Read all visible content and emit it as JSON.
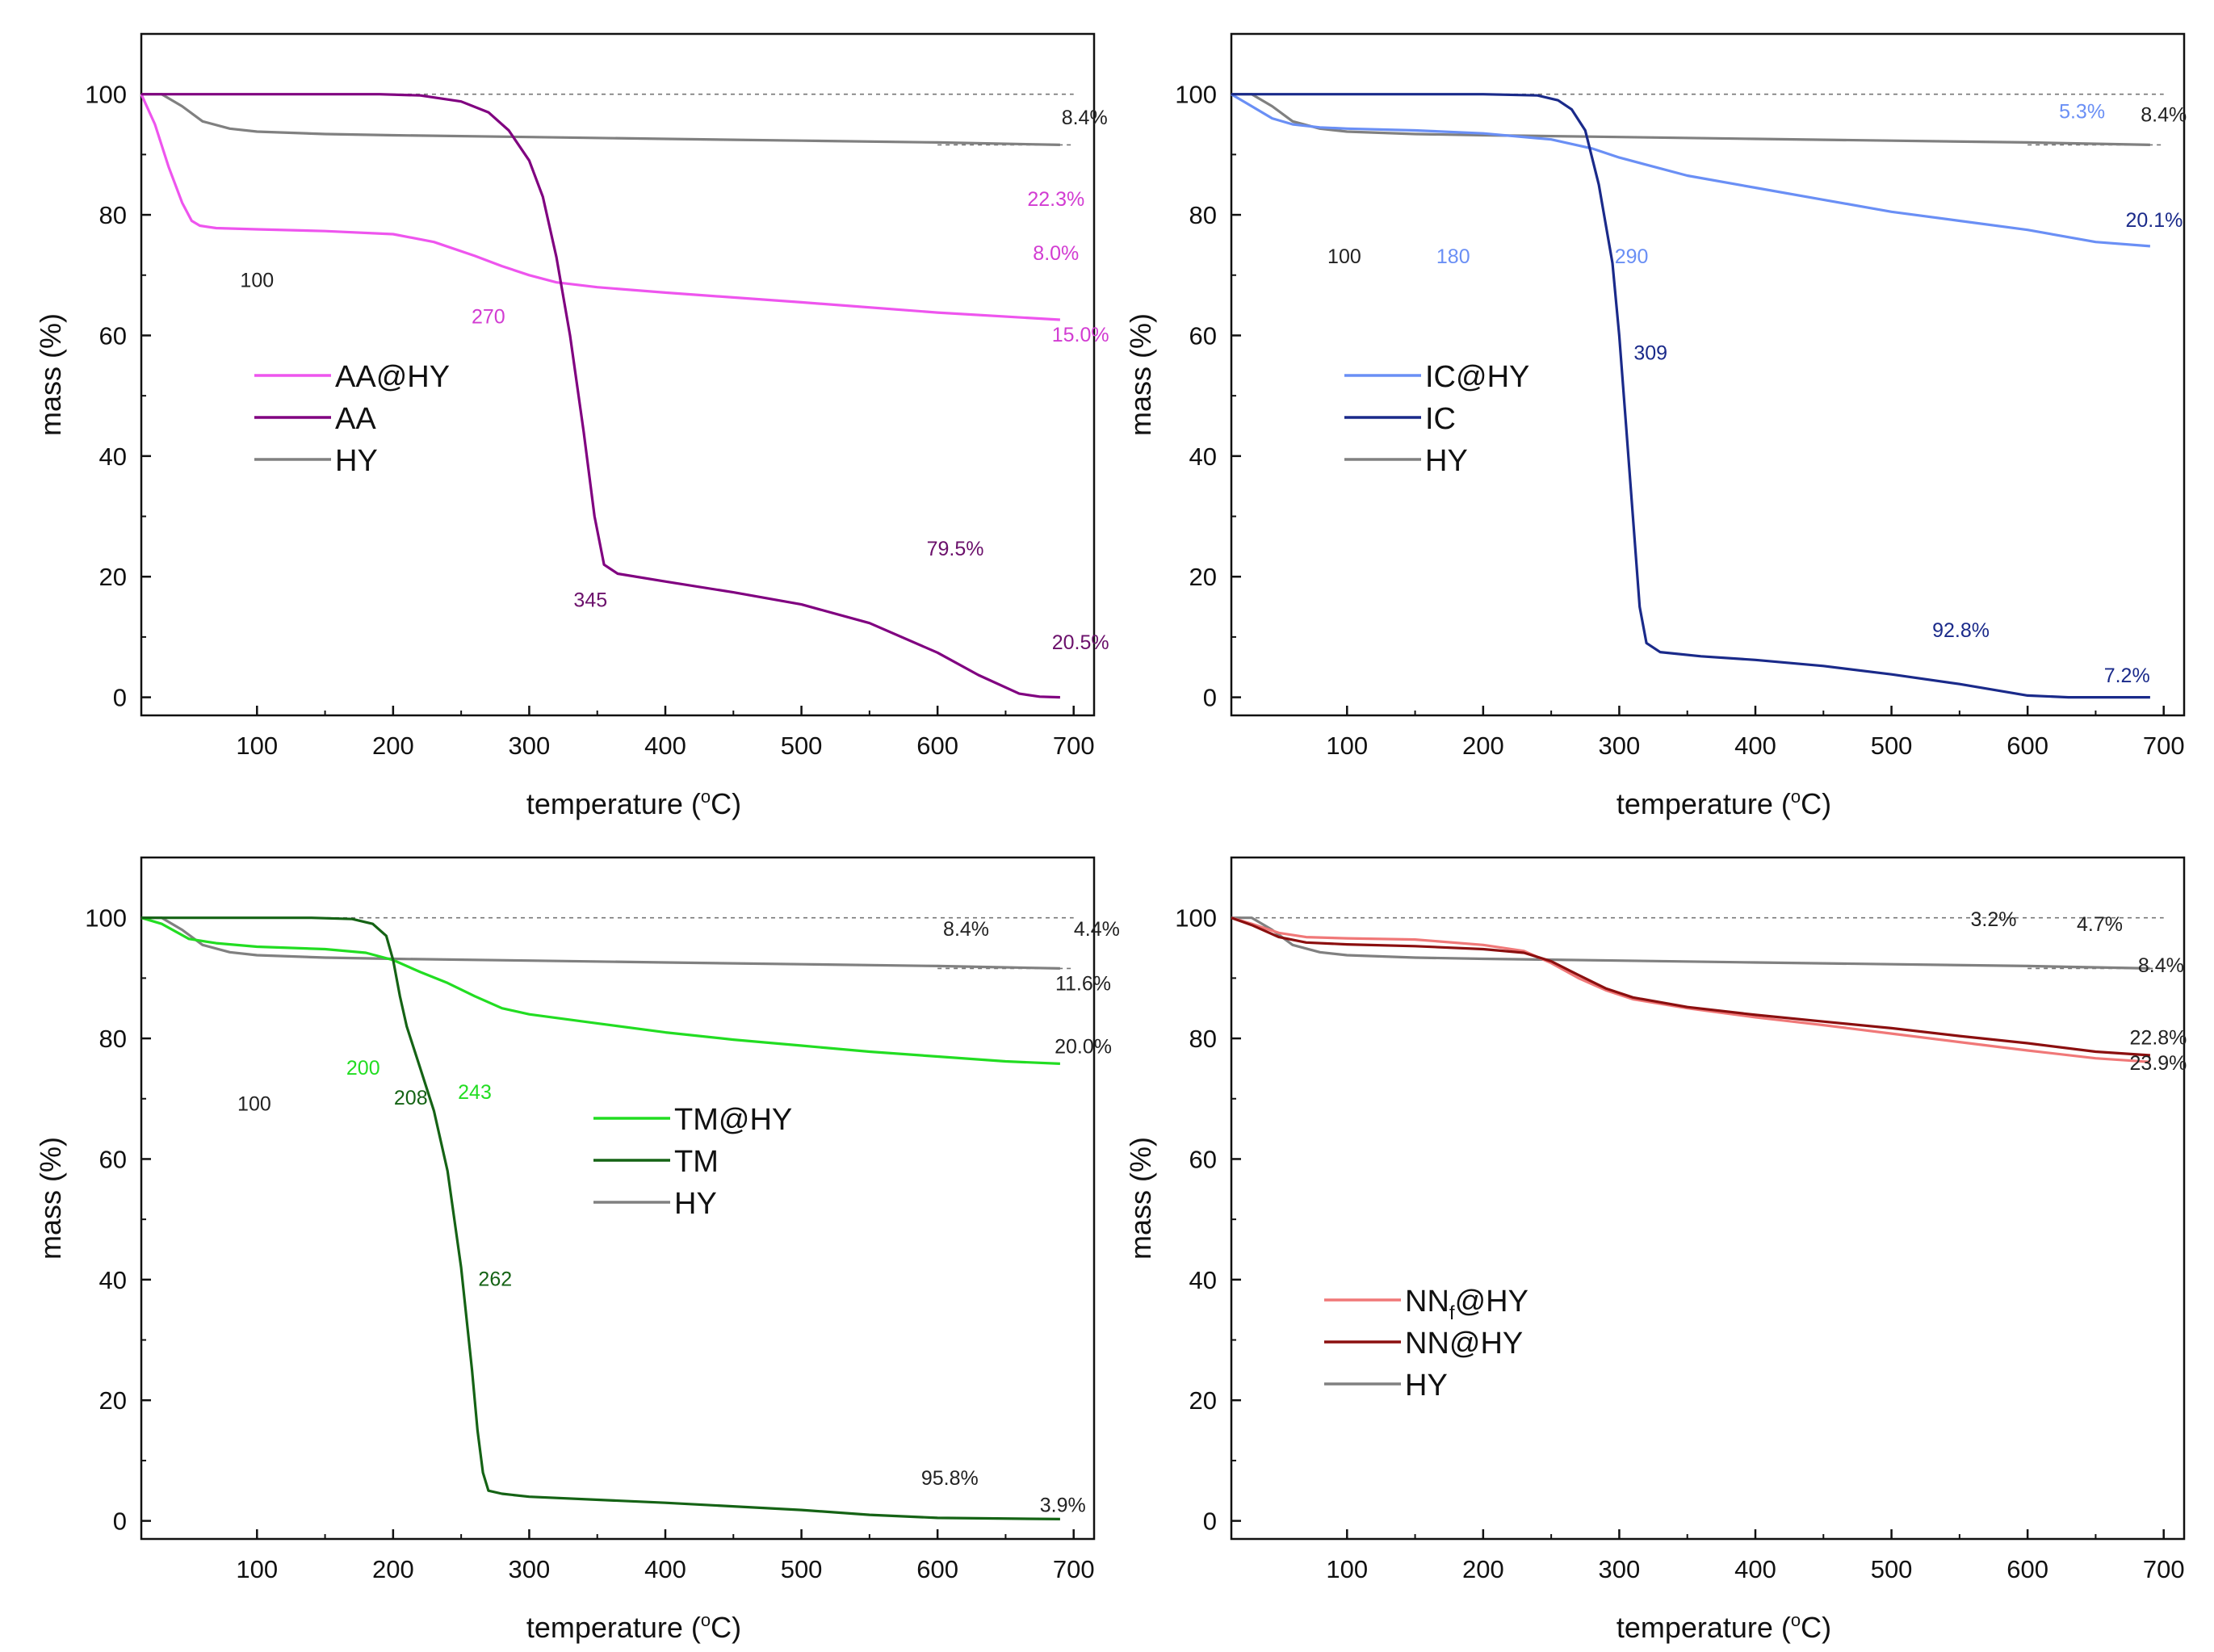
{
  "chart_data": [
    {
      "id": "aa",
      "type": "line",
      "xlabel": "temperature (",
      "xlabel_sup": "o",
      "xlabel_end": "C)",
      "ylabel": "mass (%)",
      "xlim": [
        15,
        715
      ],
      "ylim": [
        -3,
        110
      ],
      "xticks": [
        "100",
        "200",
        "300",
        "400",
        "500",
        "600",
        "700"
      ],
      "yticks": [
        "0",
        "20",
        "40",
        "60",
        "80",
        "100"
      ],
      "legend": {
        "position": "middle-left",
        "entries": [
          {
            "label": "AA@HY",
            "sub": "",
            "tail": "",
            "color": "#ee55ee"
          },
          {
            "label": "AA",
            "sub": "",
            "tail": "",
            "color": "#800080"
          },
          {
            "label": "HY",
            "sub": "",
            "tail": "",
            "color": "#808080"
          }
        ]
      },
      "series": [
        {
          "name": "HY",
          "color": "#808080",
          "x": [
            15,
            30,
            45,
            60,
            80,
            100,
            150,
            200,
            300,
            400,
            500,
            600,
            690
          ],
          "y": [
            100,
            100,
            98,
            95.5,
            94.3,
            93.8,
            93.4,
            93.2,
            92.9,
            92.6,
            92.3,
            92.0,
            91.6
          ]
        },
        {
          "name": "AA@HY",
          "color": "#ee55ee",
          "x": [
            15,
            25,
            35,
            45,
            52,
            58,
            70,
            100,
            150,
            200,
            230,
            260,
            280,
            300,
            320,
            350,
            400,
            500,
            600,
            690
          ],
          "y": [
            100,
            95,
            88,
            82,
            79,
            78.2,
            77.8,
            77.6,
            77.3,
            76.8,
            75.5,
            73.2,
            71.5,
            70,
            68.8,
            68,
            67.1,
            65.5,
            63.8,
            62.6
          ]
        },
        {
          "name": "AA",
          "color": "#800080",
          "x": [
            15,
            50,
            100,
            150,
            190,
            220,
            250,
            270,
            285,
            300,
            310,
            320,
            330,
            340,
            348,
            355,
            365,
            400,
            450,
            500,
            550,
            600,
            630,
            660,
            675,
            690
          ],
          "y": [
            100,
            100,
            100,
            100,
            100,
            99.8,
            98.8,
            97,
            94,
            89,
            83,
            73,
            60,
            44,
            30,
            22,
            20.5,
            19.2,
            17.4,
            15.4,
            12.3,
            7.4,
            3.7,
            0.6,
            0.1,
            0
          ]
        }
      ],
      "annotations": [
        {
          "text": "100",
          "x": 100,
          "y": 68,
          "color": "#222222"
        },
        {
          "text": "270",
          "x": 270,
          "y": 62,
          "color": "#d23cd2"
        },
        {
          "text": "345",
          "x": 345,
          "y": 15,
          "color": "#6b106b"
        },
        {
          "text": "8.4%",
          "x": 708,
          "y": 95,
          "color": "#222222"
        },
        {
          "text": "22.3%",
          "x": 687,
          "y": 81.5,
          "color": "#d23cd2"
        },
        {
          "text": "8.0%",
          "x": 687,
          "y": 72.5,
          "color": "#d23cd2"
        },
        {
          "text": "15.0%",
          "x": 705,
          "y": 59,
          "color": "#d23cd2"
        },
        {
          "text": "79.5%",
          "x": 613,
          "y": 23.5,
          "color": "#6b106b"
        },
        {
          "text": "20.5%",
          "x": 705,
          "y": 8,
          "color": "#6b106b"
        }
      ]
    },
    {
      "id": "ic",
      "type": "line",
      "xlabel": "temperature (",
      "xlabel_sup": "o",
      "xlabel_end": "C)",
      "ylabel": "mass (%)",
      "xlim": [
        15,
        715
      ],
      "ylim": [
        -3,
        110
      ],
      "xticks": [
        "100",
        "200",
        "300",
        "400",
        "500",
        "600",
        "700"
      ],
      "yticks": [
        "0",
        "20",
        "40",
        "60",
        "80",
        "100"
      ],
      "legend": {
        "position": "middle-left",
        "entries": [
          {
            "label": "IC@HY",
            "sub": "",
            "tail": "",
            "color": "#6a8ff5"
          },
          {
            "label": "IC",
            "sub": "",
            "tail": "",
            "color": "#1a2a8a"
          },
          {
            "label": "HY",
            "sub": "",
            "tail": "",
            "color": "#808080"
          }
        ]
      },
      "series": [
        {
          "name": "HY",
          "color": "#808080",
          "x": [
            15,
            30,
            45,
            60,
            80,
            100,
            150,
            200,
            300,
            400,
            500,
            600,
            690
          ],
          "y": [
            100,
            100,
            98,
            95.5,
            94.3,
            93.8,
            93.4,
            93.2,
            92.9,
            92.6,
            92.3,
            92.0,
            91.6
          ]
        },
        {
          "name": "IC@HY",
          "color": "#6a8ff5",
          "x": [
            15,
            30,
            45,
            60,
            80,
            100,
            150,
            200,
            250,
            280,
            300,
            350,
            400,
            450,
            500,
            550,
            600,
            650,
            690
          ],
          "y": [
            100,
            98,
            96,
            95,
            94.5,
            94.3,
            94,
            93.5,
            92.5,
            91,
            89.5,
            86.5,
            84.5,
            82.5,
            80.5,
            79,
            77.5,
            75.5,
            74.8
          ]
        },
        {
          "name": "IC",
          "color": "#1a2a8a",
          "x": [
            15,
            50,
            100,
            150,
            200,
            240,
            255,
            265,
            275,
            285,
            295,
            300,
            305,
            310,
            315,
            320,
            330,
            360,
            400,
            450,
            500,
            550,
            600,
            630,
            690
          ],
          "y": [
            100,
            100,
            100,
            100,
            100,
            99.8,
            99,
            97.5,
            94,
            85,
            72,
            60,
            45,
            30,
            15,
            9,
            7.5,
            6.8,
            6.2,
            5.2,
            3.8,
            2.2,
            0.3,
            0,
            0
          ]
        }
      ],
      "annotations": [
        {
          "text": "100",
          "x": 98,
          "y": 72,
          "color": "#222222"
        },
        {
          "text": "180",
          "x": 178,
          "y": 72,
          "color": "#6a8ff5"
        },
        {
          "text": "290",
          "x": 309,
          "y": 72,
          "color": "#6a8ff5"
        },
        {
          "text": "309",
          "x": 323,
          "y": 56,
          "color": "#1a2a8a"
        },
        {
          "text": "5.3%",
          "x": 640,
          "y": 96,
          "color": "#6a8ff5"
        },
        {
          "text": "8.4%",
          "x": 700,
          "y": 95.5,
          "color": "#222222"
        },
        {
          "text": "20.1%",
          "x": 693,
          "y": 78,
          "color": "#1a2a8a"
        },
        {
          "text": "92.8%",
          "x": 551,
          "y": 10,
          "color": "#1a2a8a"
        },
        {
          "text": "7.2%",
          "x": 673,
          "y": 2.5,
          "color": "#1a2a8a"
        }
      ]
    },
    {
      "id": "tm",
      "type": "line",
      "xlabel": "temperature (",
      "xlabel_sup": "o",
      "xlabel_end": "C)",
      "ylabel": "mass (%)",
      "xlim": [
        15,
        715
      ],
      "ylim": [
        -3,
        110
      ],
      "xticks": [
        "100",
        "200",
        "300",
        "400",
        "500",
        "600",
        "700"
      ],
      "yticks": [
        "0",
        "20",
        "40",
        "60",
        "80",
        "100"
      ],
      "legend": {
        "position": "center",
        "entries": [
          {
            "label": "TM@HY",
            "sub": "",
            "tail": "",
            "color": "#22dd22"
          },
          {
            "label": "TM",
            "sub": "",
            "tail": "",
            "color": "#156315"
          },
          {
            "label": "HY",
            "sub": "",
            "tail": "",
            "color": "#808080"
          }
        ]
      },
      "series": [
        {
          "name": "HY",
          "color": "#808080",
          "x": [
            15,
            30,
            45,
            60,
            80,
            100,
            150,
            200,
            300,
            400,
            500,
            600,
            690
          ],
          "y": [
            100,
            100,
            98,
            95.5,
            94.3,
            93.8,
            93.4,
            93.2,
            92.9,
            92.6,
            92.3,
            92.0,
            91.6
          ]
        },
        {
          "name": "TM@HY",
          "color": "#22dd22",
          "x": [
            15,
            30,
            50,
            70,
            100,
            150,
            180,
            200,
            220,
            240,
            260,
            280,
            300,
            350,
            400,
            450,
            500,
            550,
            600,
            650,
            690
          ],
          "y": [
            100,
            99,
            96.5,
            95.8,
            95.2,
            94.8,
            94.2,
            93,
            91,
            89.2,
            87,
            85,
            84,
            82.5,
            81,
            79.8,
            78.8,
            77.8,
            77,
            76.2,
            75.8
          ]
        },
        {
          "name": "TM",
          "color": "#156315",
          "x": [
            15,
            50,
            100,
            140,
            170,
            185,
            195,
            200,
            205,
            210,
            220,
            230,
            240,
            250,
            258,
            262,
            266,
            270,
            280,
            300,
            400,
            500,
            550,
            600,
            690
          ],
          "y": [
            100,
            100,
            100,
            100,
            99.8,
            99,
            97,
            93,
            87,
            82,
            75,
            68,
            58,
            42,
            25,
            15,
            8,
            5,
            4.5,
            4,
            3,
            1.8,
            1,
            0.5,
            0.3
          ]
        }
      ],
      "annotations": [
        {
          "text": "100",
          "x": 98,
          "y": 68,
          "color": "#222222"
        },
        {
          "text": "200",
          "x": 178,
          "y": 74,
          "color": "#22dd22"
        },
        {
          "text": "208",
          "x": 213,
          "y": 69,
          "color": "#156315"
        },
        {
          "text": "243",
          "x": 260,
          "y": 70,
          "color": "#22dd22"
        },
        {
          "text": "262",
          "x": 275,
          "y": 39,
          "color": "#156315"
        },
        {
          "text": "8.4%",
          "x": 621,
          "y": 97,
          "color": "#222222"
        },
        {
          "text": "4.4%",
          "x": 717,
          "y": 97,
          "color": "#222222"
        },
        {
          "text": "11.6%",
          "x": 707,
          "y": 88,
          "color": "#222222"
        },
        {
          "text": "20.0%",
          "x": 707,
          "y": 77.5,
          "color": "#222222"
        },
        {
          "text": "95.8%",
          "x": 609,
          "y": 6,
          "color": "#222222"
        },
        {
          "text": "3.9%",
          "x": 692,
          "y": 1.5,
          "color": "#222222"
        }
      ]
    },
    {
      "id": "nn",
      "type": "line",
      "xlabel": "temperature (",
      "xlabel_sup": "o",
      "xlabel_end": "C)",
      "ylabel": "mass (%)",
      "xlim": [
        15,
        715
      ],
      "ylim": [
        -3,
        110
      ],
      "xticks": [
        "100",
        "200",
        "300",
        "400",
        "500",
        "600",
        "700"
      ],
      "yticks": [
        "0",
        "20",
        "40",
        "60",
        "80",
        "100"
      ],
      "legend": {
        "position": "bottom-left",
        "entries": [
          {
            "label": "NN",
            "sub": "f",
            "tail": "@HY",
            "color": "#f07878"
          },
          {
            "label": "NN@HY",
            "sub": "",
            "tail": "",
            "color": "#8b0f0f"
          },
          {
            "label": "HY",
            "sub": "",
            "tail": "",
            "color": "#808080"
          }
        ]
      },
      "series": [
        {
          "name": "HY",
          "color": "#808080",
          "x": [
            15,
            30,
            45,
            60,
            80,
            100,
            150,
            200,
            300,
            400,
            500,
            600,
            690
          ],
          "y": [
            100,
            100,
            98,
            95.5,
            94.3,
            93.8,
            93.4,
            93.2,
            92.9,
            92.6,
            92.3,
            92.0,
            91.6
          ]
        },
        {
          "name": "NNf@HY",
          "color": "#f07878",
          "x": [
            15,
            30,
            50,
            70,
            100,
            150,
            200,
            230,
            250,
            270,
            290,
            310,
            350,
            400,
            450,
            500,
            550,
            600,
            650,
            690
          ],
          "y": [
            100,
            99,
            97.5,
            96.8,
            96.6,
            96.4,
            95.5,
            94.5,
            92.5,
            90,
            88,
            86.5,
            85,
            83.5,
            82.2,
            80.8,
            79.4,
            78,
            76.7,
            76.1
          ]
        },
        {
          "name": "NN@HY",
          "color": "#8b0f0f",
          "x": [
            15,
            30,
            50,
            70,
            100,
            150,
            200,
            230,
            250,
            270,
            290,
            310,
            350,
            400,
            450,
            500,
            550,
            600,
            650,
            690
          ],
          "y": [
            100,
            98.8,
            96.8,
            95.9,
            95.6,
            95.3,
            94.8,
            94.2,
            92.8,
            90.5,
            88.3,
            86.8,
            85.2,
            83.9,
            82.8,
            81.7,
            80.4,
            79.2,
            77.8,
            77.2
          ]
        }
      ],
      "annotations": [
        {
          "text": "3.2%",
          "x": 575,
          "y": 98.6,
          "color": "#222222"
        },
        {
          "text": "4.7%",
          "x": 653,
          "y": 97.8,
          "color": "#222222"
        },
        {
          "text": "8.4%",
          "x": 698,
          "y": 91,
          "color": "#222222"
        },
        {
          "text": "22.8%",
          "x": 696,
          "y": 79,
          "color": "#222222"
        },
        {
          "text": "23.9%",
          "x": 696,
          "y": 74.8,
          "color": "#222222"
        }
      ]
    }
  ]
}
